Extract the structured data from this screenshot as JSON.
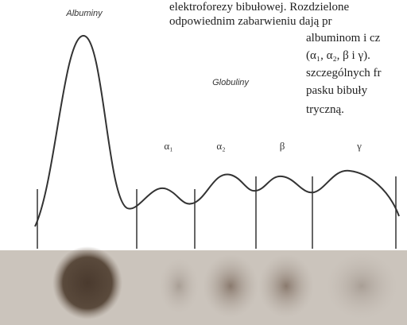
{
  "peak_label": "Albuminy",
  "group_label": "Globuliny",
  "fractions": [
    "α₁",
    "α₂",
    "β",
    "γ"
  ],
  "text_lines": [
    "elektroforezy bibułowej. Rozdzielone",
    "odpowiednim zabarwieniu dają pr",
    "albuminom i cz",
    "(α₁, α₂, β i γ).",
    "szczególnych fr",
    "pasku bibuły",
    "tryczną."
  ]
}
